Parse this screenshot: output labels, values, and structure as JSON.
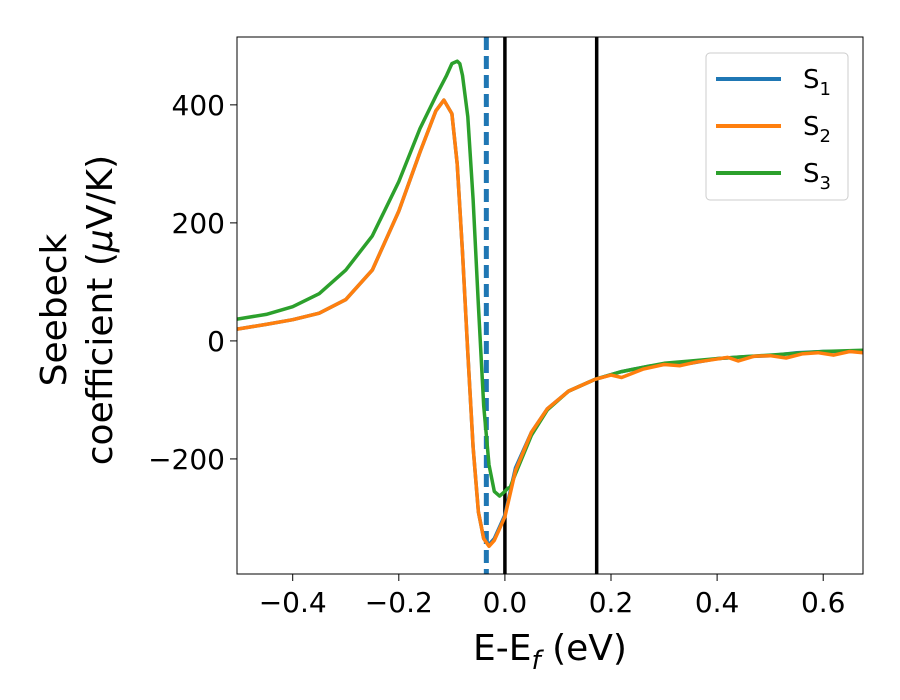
{
  "chart_data": {
    "type": "line",
    "xlabel": {
      "main": "E-E",
      "sub": "f",
      "suffix": " (eV)"
    },
    "ylabel": {
      "line1": "Seebeck",
      "line2_pre": "coefficient  (",
      "mu": "μ",
      "line2_post": "V/K)"
    },
    "xlim": [
      -0.505,
      0.675
    ],
    "ylim": [
      -395,
      515
    ],
    "xticks": [
      -0.4,
      -0.2,
      0.0,
      0.2,
      0.4,
      0.6
    ],
    "xtick_labels": [
      "−0.4",
      "−0.2",
      "0.0",
      "0.2",
      "0.4",
      "0.6"
    ],
    "yticks": [
      -200,
      0,
      200,
      400
    ],
    "ytick_labels": [
      "−200",
      "0",
      "200",
      "400"
    ],
    "grid": false,
    "legend_position": "top-right",
    "series": [
      {
        "name": {
          "base": "S",
          "sub": "1"
        },
        "color": "#1f77b4",
        "x": [
          -0.505,
          -0.45,
          -0.4,
          -0.35,
          -0.3,
          -0.25,
          -0.2,
          -0.16,
          -0.13,
          -0.115,
          -0.1,
          -0.09,
          -0.08,
          -0.07,
          -0.06,
          -0.05,
          -0.04,
          -0.03,
          -0.02,
          -0.01,
          0.0,
          0.02,
          0.05,
          0.08,
          0.12,
          0.17,
          0.22,
          0.27,
          0.3,
          0.35,
          0.4,
          0.45,
          0.5,
          0.55,
          0.6,
          0.675
        ],
        "y": [
          20,
          28,
          36,
          47,
          70,
          120,
          220,
          320,
          390,
          408,
          385,
          300,
          150,
          -20,
          -180,
          -290,
          -335,
          -345,
          -335,
          -315,
          -295,
          -215,
          -155,
          -115,
          -85,
          -65,
          -52,
          -43,
          -40,
          -38,
          -30,
          -27,
          -25,
          -20,
          -18,
          -18
        ]
      },
      {
        "name": {
          "base": "S",
          "sub": "2"
        },
        "color": "#ff7f0e",
        "x": [
          -0.505,
          -0.45,
          -0.4,
          -0.35,
          -0.3,
          -0.25,
          -0.2,
          -0.16,
          -0.13,
          -0.115,
          -0.1,
          -0.09,
          -0.08,
          -0.07,
          -0.06,
          -0.05,
          -0.04,
          -0.03,
          -0.02,
          -0.01,
          0.0,
          0.02,
          0.05,
          0.08,
          0.12,
          0.17,
          0.2,
          0.22,
          0.24,
          0.26,
          0.3,
          0.33,
          0.36,
          0.39,
          0.42,
          0.44,
          0.47,
          0.5,
          0.53,
          0.56,
          0.59,
          0.62,
          0.65,
          0.675
        ],
        "y": [
          20,
          28,
          36,
          47,
          70,
          120,
          220,
          320,
          390,
          408,
          385,
          300,
          150,
          -20,
          -180,
          -290,
          -335,
          -348,
          -338,
          -318,
          -298,
          -220,
          -155,
          -115,
          -85,
          -65,
          -58,
          -62,
          -55,
          -48,
          -40,
          -42,
          -36,
          -32,
          -28,
          -34,
          -26,
          -25,
          -29,
          -22,
          -20,
          -24,
          -18,
          -20
        ]
      },
      {
        "name": {
          "base": "S",
          "sub": "3"
        },
        "color": "#2ca02c",
        "x": [
          -0.505,
          -0.45,
          -0.4,
          -0.35,
          -0.3,
          -0.25,
          -0.2,
          -0.16,
          -0.13,
          -0.11,
          -0.1,
          -0.09,
          -0.085,
          -0.08,
          -0.07,
          -0.06,
          -0.05,
          -0.04,
          -0.03,
          -0.02,
          -0.01,
          0.0,
          0.005,
          0.01,
          0.02,
          0.05,
          0.08,
          0.12,
          0.17,
          0.22,
          0.27,
          0.3,
          0.35,
          0.4,
          0.45,
          0.5,
          0.55,
          0.6,
          0.675
        ],
        "y": [
          37,
          45,
          58,
          80,
          120,
          178,
          270,
          360,
          415,
          450,
          470,
          474,
          470,
          450,
          380,
          240,
          60,
          -110,
          -210,
          -255,
          -263,
          -255,
          -250,
          -248,
          -225,
          -160,
          -117,
          -85,
          -65,
          -52,
          -43,
          -38,
          -34,
          -30,
          -27,
          -24,
          -21,
          -18,
          -16
        ]
      }
    ],
    "vlines": [
      {
        "x": -0.035,
        "color": "#1f77b4",
        "style": "dashed"
      },
      {
        "x": 0.0,
        "color": "#000000",
        "style": "solid"
      },
      {
        "x": 0.173,
        "color": "#000000",
        "style": "solid"
      }
    ]
  }
}
